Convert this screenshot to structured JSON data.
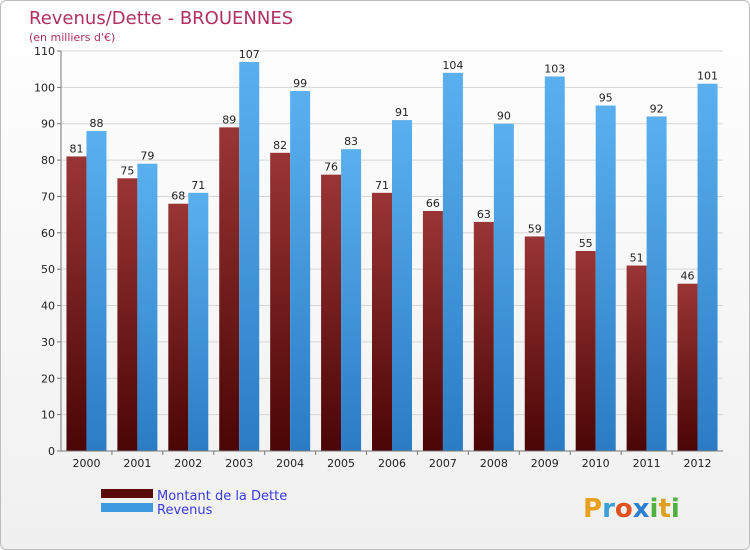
{
  "chart_data": {
    "type": "bar",
    "title": "Revenus/Dette - BROUENNES",
    "subtitle": "(en milliers d'€)",
    "xlabel": "",
    "ylabel": "",
    "ylim": [
      0,
      110
    ],
    "yticks": [
      0,
      10,
      20,
      30,
      40,
      50,
      60,
      70,
      80,
      90,
      100,
      110
    ],
    "grid": true,
    "legend_position": "bottom-left",
    "categories": [
      "2000",
      "2001",
      "2002",
      "2003",
      "2004",
      "2005",
      "2006",
      "2007",
      "2008",
      "2009",
      "2010",
      "2011",
      "2012"
    ],
    "series": [
      {
        "name": "Montant de la Dette",
        "color": "#7a1c1c",
        "values": [
          81,
          75,
          68,
          89,
          82,
          76,
          71,
          66,
          63,
          59,
          55,
          51,
          46
        ]
      },
      {
        "name": "Revenus",
        "color": "#3d9ae0",
        "values": [
          88,
          79,
          71,
          107,
          99,
          83,
          91,
          104,
          90,
          103,
          95,
          92,
          101
        ]
      }
    ]
  },
  "branding": {
    "logo_letters": [
      "P",
      "r",
      "o",
      "x",
      "i",
      "t",
      "i"
    ],
    "logo_colors": [
      "#e8a020",
      "#3aa0d8",
      "#e05020",
      "#2a7fd0",
      "#50b040",
      "#e0a020",
      "#50b040"
    ]
  }
}
